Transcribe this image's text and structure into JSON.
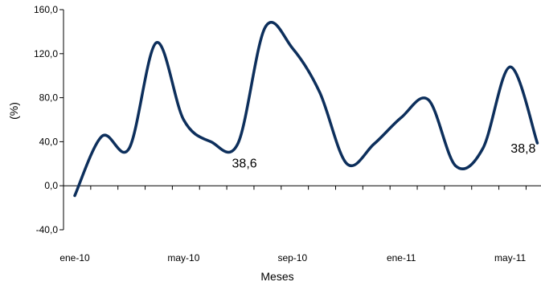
{
  "chart_data": {
    "type": "line",
    "xlabel": "Meses",
    "ylabel": "(%)",
    "ylim": [
      -40,
      160
    ],
    "yticks": [
      "-40,0",
      "0,0",
      "40,0",
      "80,0",
      "120,0",
      "160,0"
    ],
    "ytick_values": [
      -40,
      0,
      40,
      80,
      120,
      160
    ],
    "x_tick_labels": [
      "ene-10",
      "may-10",
      "sep-10",
      "ene-11",
      "may-11"
    ],
    "x_tick_index": [
      0,
      4,
      8,
      12,
      16
    ],
    "grid": false,
    "legend": "none",
    "series": [
      {
        "color": "#0d2f5c",
        "x": [
          "ene-10",
          "feb-10",
          "mar-10",
          "abr-10",
          "may-10",
          "jun-10",
          "jul-10",
          "ago-10",
          "sep-10",
          "oct-10",
          "nov-10",
          "dic-10",
          "ene-11",
          "feb-11",
          "mar-11",
          "abr-11",
          "may-11",
          "jun-11"
        ],
        "values": [
          -9.0,
          45.0,
          34.0,
          130.0,
          60.0,
          40.0,
          38.6,
          144.0,
          125.0,
          85.0,
          20.0,
          38.0,
          62.0,
          78.0,
          18.0,
          34.0,
          108.0,
          38.8
        ]
      }
    ],
    "annotations": [
      {
        "text": "38,6",
        "index": 6
      },
      {
        "text": "38,8",
        "index": 17
      }
    ]
  }
}
